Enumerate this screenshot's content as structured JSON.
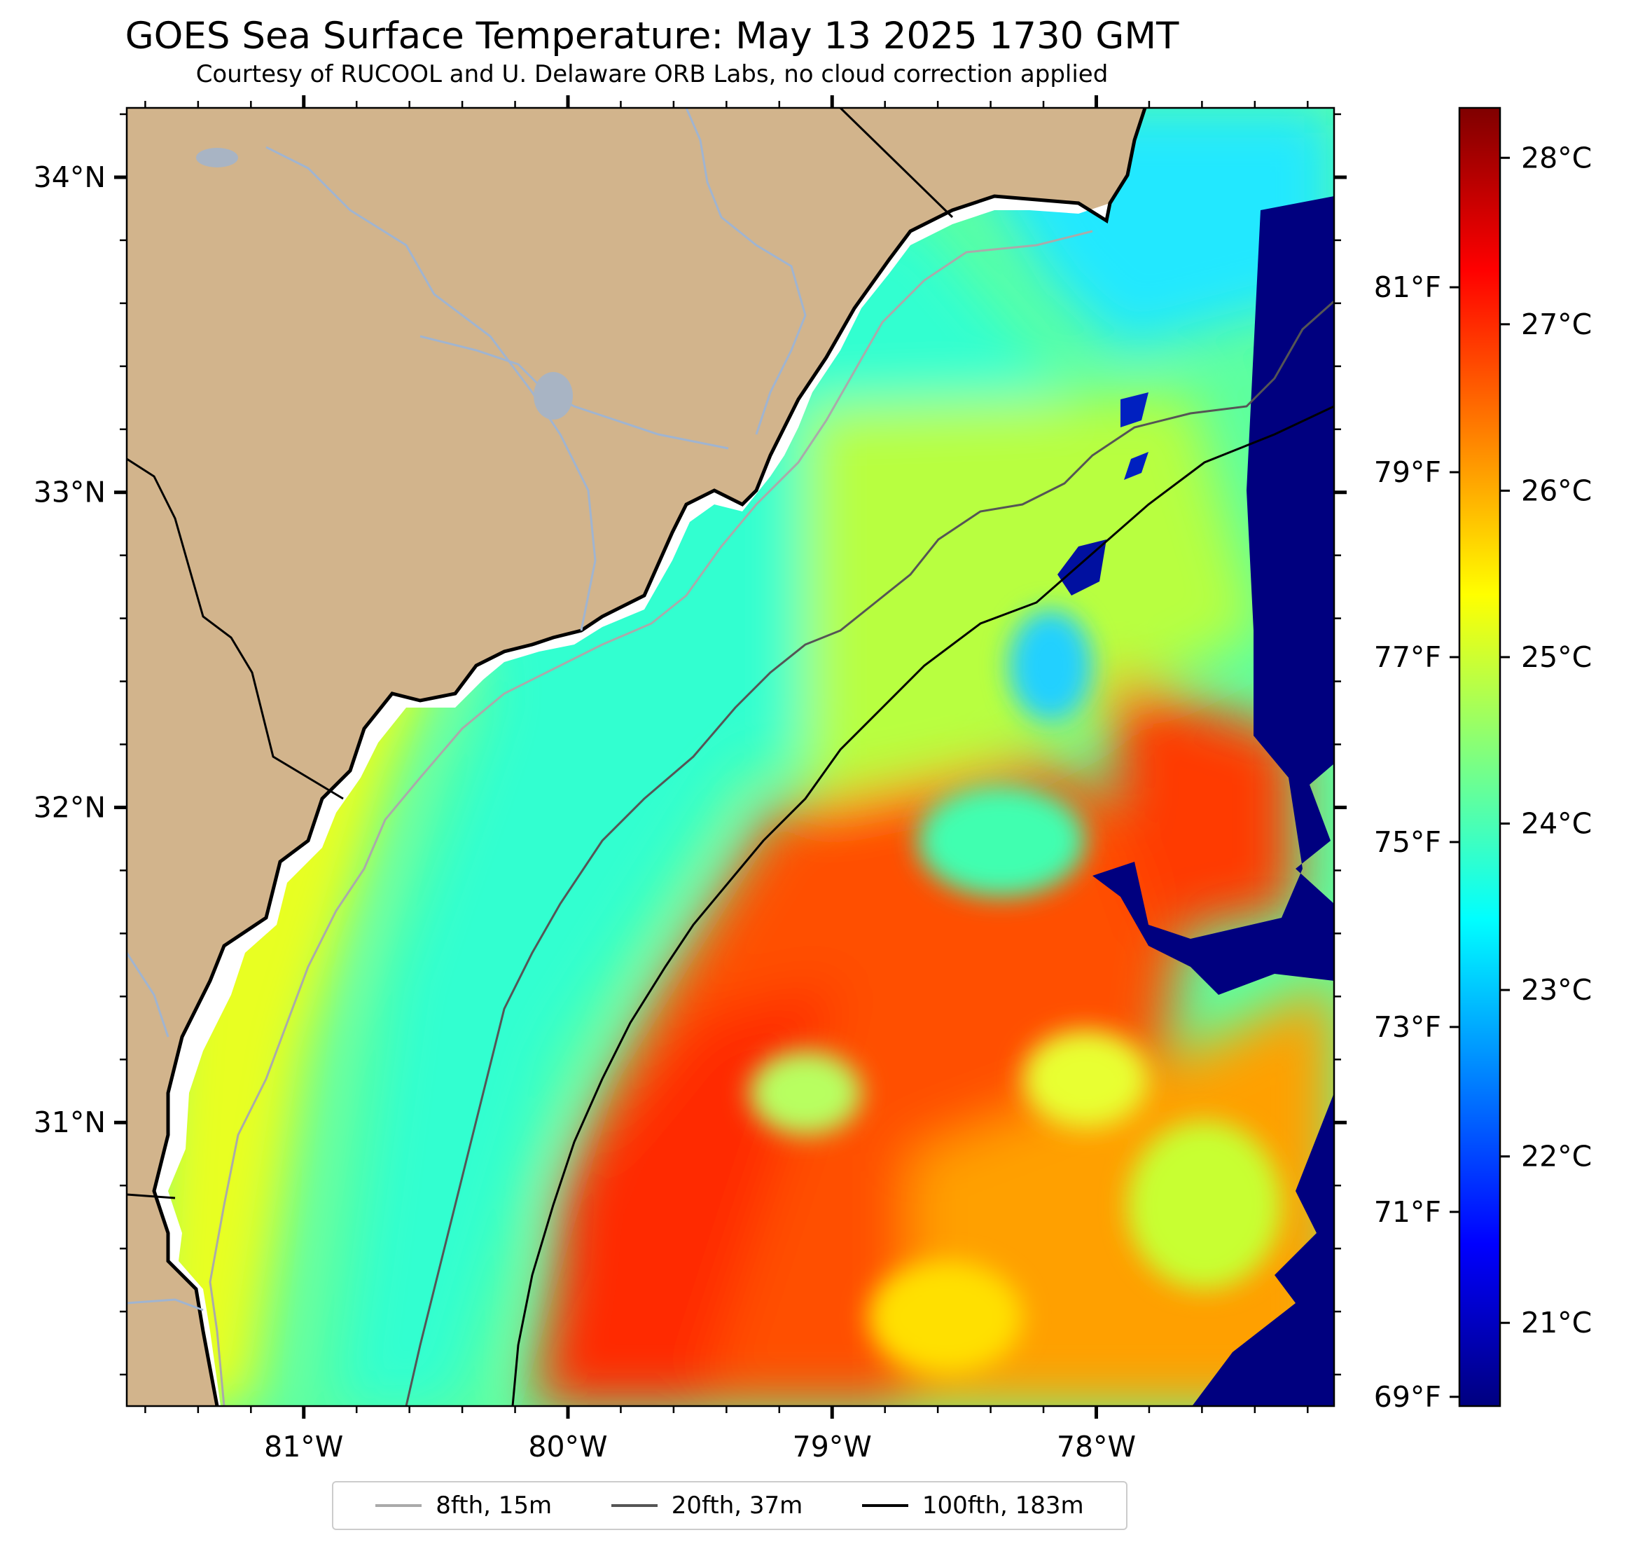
{
  "title": "GOES Sea Surface Temperature: May 13 2025 1730 GMT",
  "subtitle": "Courtesy of RUCOOL and U. Delaware ORB Labs, no cloud correction applied",
  "map": {
    "lon_range": [
      -81.67,
      -77.1
    ],
    "lat_range": [
      30.1,
      34.22
    ],
    "land_color": "#d2b48c",
    "water_color_missing": "#ffffff",
    "colormap": "jet"
  },
  "axes": {
    "x_ticks": [
      {
        "value": -81,
        "label": "81°W"
      },
      {
        "value": -80,
        "label": "80°W"
      },
      {
        "value": -79,
        "label": "79°W"
      },
      {
        "value": -78,
        "label": "78°W"
      }
    ],
    "y_ticks": [
      {
        "value": 34,
        "label": "34°N"
      },
      {
        "value": 33,
        "label": "33°N"
      },
      {
        "value": 32,
        "label": "32°N"
      },
      {
        "value": 31,
        "label": "31°N"
      }
    ],
    "f_ticks": [
      {
        "value": 81,
        "label": "81°F"
      },
      {
        "value": 79,
        "label": "79°F"
      },
      {
        "value": 77,
        "label": "77°F"
      },
      {
        "value": 75,
        "label": "75°F"
      },
      {
        "value": 73,
        "label": "73°F"
      },
      {
        "value": 71,
        "label": "71°F"
      },
      {
        "value": 69,
        "label": "69°F"
      }
    ]
  },
  "colorbar": {
    "range_c": [
      20.5,
      28.3
    ],
    "ticks": [
      {
        "value": 28,
        "label": "28°C"
      },
      {
        "value": 27,
        "label": "27°C"
      },
      {
        "value": 26,
        "label": "26°C"
      },
      {
        "value": 25,
        "label": "25°C"
      },
      {
        "value": 24,
        "label": "24°C"
      },
      {
        "value": 23,
        "label": "23°C"
      },
      {
        "value": 22,
        "label": "22°C"
      },
      {
        "value": 21,
        "label": "21°C"
      }
    ],
    "colors": [
      "#00007f",
      "#0000ff",
      "#007fff",
      "#00ffff",
      "#7fff7f",
      "#ffff00",
      "#ff7f00",
      "#ff0000",
      "#7f0000"
    ]
  },
  "legend": [
    {
      "label": "8fth, 15m",
      "color": "#aaaaaa"
    },
    {
      "label": "20fth, 37m",
      "color": "#555555"
    },
    {
      "label": "100fth, 183m",
      "color": "#000000"
    }
  ]
}
